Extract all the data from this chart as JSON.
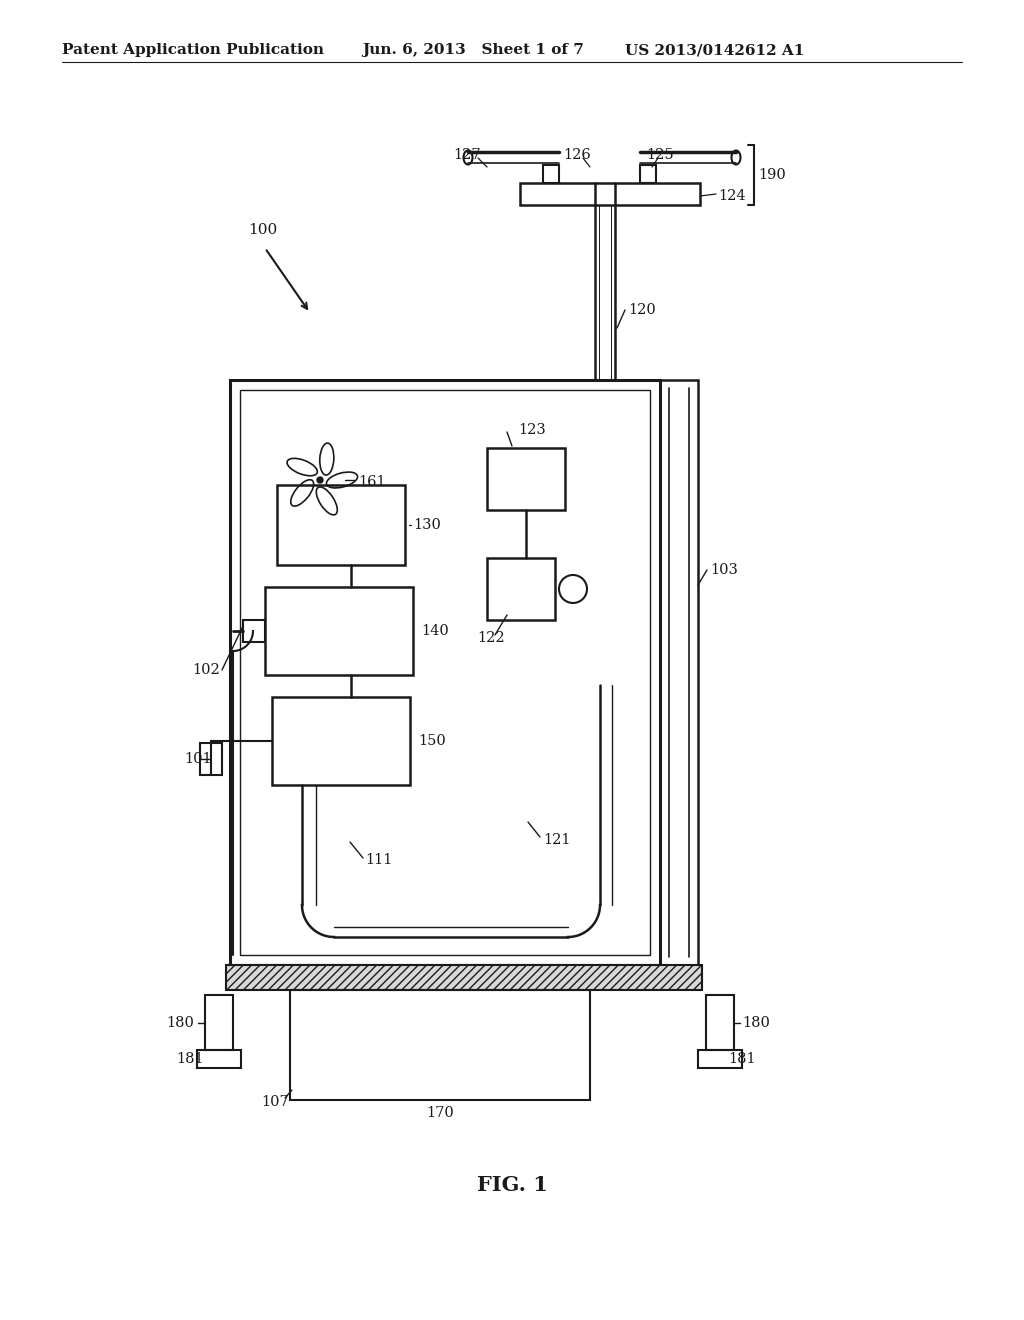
{
  "bg_color": "#ffffff",
  "line_color": "#1a1a1a",
  "header_text1": "Patent Application Publication",
  "header_text2": "Jun. 6, 2013   Sheet 1 of 7",
  "header_text3": "US 2013/0142612 A1",
  "fig_label": "FIG. 1",
  "labels": {
    "100": "100",
    "101": "101",
    "102": "102",
    "103": "103",
    "107": "107",
    "111": "111",
    "120": "120",
    "121": "121",
    "122": "122",
    "123": "123",
    "124": "124",
    "125": "125",
    "126": "126",
    "127": "127",
    "130": "130",
    "140": "140",
    "150": "150",
    "161": "161",
    "170": "170",
    "180a": "180",
    "180b": "180",
    "181a": "181",
    "181b": "181",
    "190": "190"
  }
}
